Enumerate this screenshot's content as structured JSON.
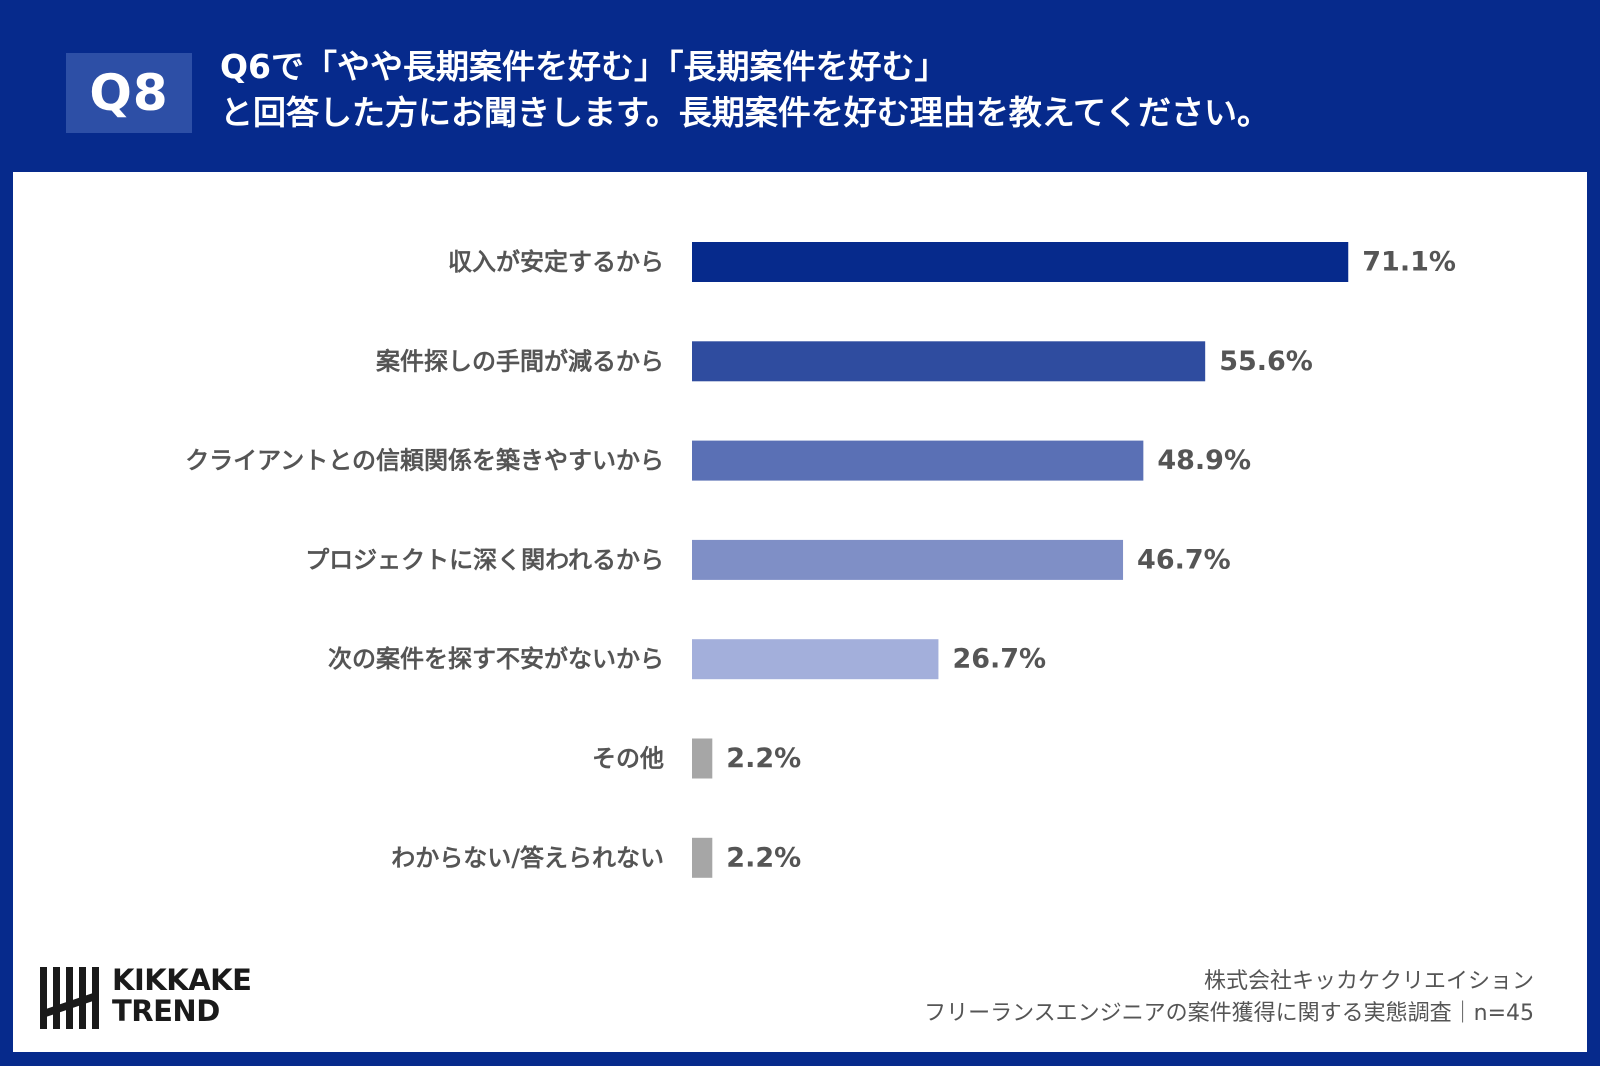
{
  "header": {
    "badge": "Q8",
    "question_line1": "Q6で「やや長期案件を好む」「長期案件を好む」",
    "question_line2": "と回答した方にお聞きします。長期案件を好む理由を教えてください。"
  },
  "chart_data": {
    "type": "bar",
    "orientation": "horizontal",
    "categories": [
      "収入が安定するから",
      "案件探しの手間が減るから",
      "クライアントとの信頼関係を築きやすいから",
      "プロジェクトに深く関われるから",
      "次の案件を探す不安がないから",
      "その他",
      "わからない/答えられない"
    ],
    "values": [
      71.1,
      55.6,
      48.9,
      46.7,
      26.7,
      2.2,
      2.2
    ],
    "value_labels": [
      "71.1%",
      "55.6%",
      "48.9%",
      "46.7%",
      "26.7%",
      "2.2%",
      "2.2%"
    ],
    "bar_colors": [
      "#062a8c",
      "#2f4c9f",
      "#5a70b5",
      "#7f8fc6",
      "#a3afdb",
      "#a6a6a6",
      "#a6a6a6"
    ],
    "xlim": [
      0,
      100
    ],
    "grid": false,
    "legend": "none"
  },
  "colors": {
    "background": "#062a8c",
    "badge": "#2d4fa6",
    "label_text": "#555555"
  },
  "footer": {
    "logo_line1": "KIKKAKE",
    "logo_line2": "TREND",
    "source_line1": "株式会社キッカケクリエイション",
    "source_line2": "フリーランスエンジニアの案件獲得に関する実態調査｜n=45"
  }
}
